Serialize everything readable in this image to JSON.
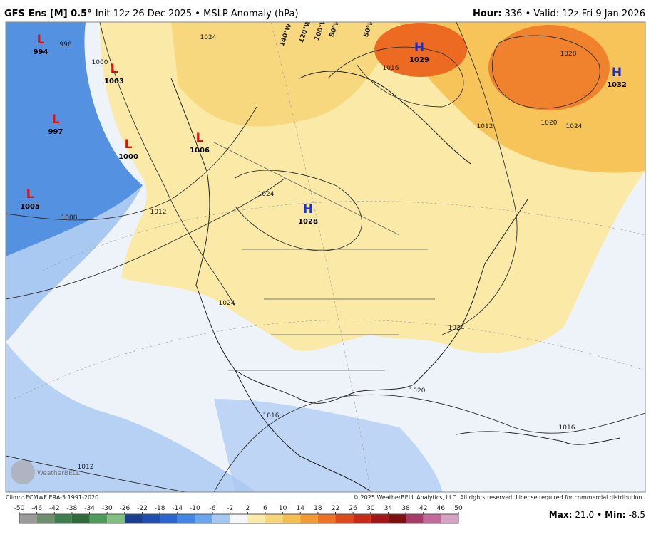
{
  "header": {
    "model": "GFS Ens [M] 0.5°",
    "info": "Init 12z 26 Dec 2025 • MSLP Anomaly (hPa)",
    "hour_label": "Hour:",
    "hour_info": "336 • Valid: 12z Fri 9 Jan 2026"
  },
  "centers": [
    {
      "symbol": "L",
      "value": 994
    },
    {
      "symbol": "L",
      "value": 1003
    },
    {
      "symbol": "L",
      "value": 997
    },
    {
      "symbol": "L",
      "value": 1000
    },
    {
      "symbol": "L",
      "value": 1006
    },
    {
      "symbol": "L",
      "value": 1005
    },
    {
      "symbol": "H",
      "value": 1029
    },
    {
      "symbol": "H",
      "value": 1032
    },
    {
      "symbol": "H",
      "value": 1028
    }
  ],
  "isobar_labels": [
    1024,
    996,
    1000,
    1008,
    1012,
    1024,
    1024,
    1016,
    1012,
    1020,
    1024,
    1028,
    1020,
    1016,
    1012,
    1016,
    1024
  ],
  "longitude_labels": [
    "140°W",
    "120°W",
    "100°W",
    "80°W",
    "50°W"
  ],
  "logo": "WeatherBELL",
  "footer": {
    "climo": "Climo: ECMWF ERA-5 1991-2020",
    "copyright": "© 2025 WeatherBELL Analytics, LLC. All rights reserved. License required for commercial distribution.",
    "max_label": "Max:",
    "max": "21.0",
    "sep": "•",
    "min_label": "Min:",
    "min": "-8.5"
  },
  "colorbar": {
    "ticks": [
      -50,
      -46,
      -42,
      -38,
      -34,
      -30,
      -26,
      -22,
      -18,
      -14,
      -10,
      -6,
      -2,
      2,
      6,
      10,
      14,
      18,
      22,
      26,
      30,
      34,
      38,
      42,
      46,
      50
    ],
    "colors": [
      "#9a9a9a",
      "#6e8f6e",
      "#3f7f4f",
      "#2f6a3a",
      "#4d9b5a",
      "#7fbf7f",
      "#1a3f8f",
      "#1f4fb0",
      "#2a66d0",
      "#3f86e6",
      "#6aa6ee",
      "#a6c8f4",
      "#f6f7fb",
      "#fbeaa8",
      "#f8d77a",
      "#f6c04f",
      "#f39a33",
      "#ee7424",
      "#e04a1a",
      "#c82a16",
      "#a51515",
      "#7e1010",
      "#a83a6a",
      "#c46a9a",
      "#d8a2c4"
    ]
  }
}
